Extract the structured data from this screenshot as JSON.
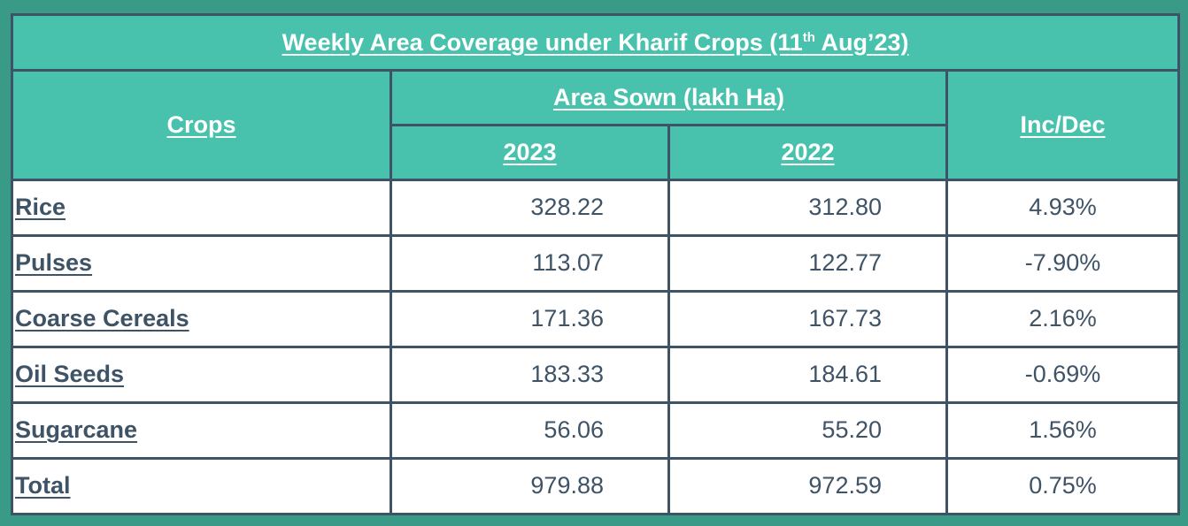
{
  "title": {
    "prefix": "Weekly Area Coverage under Kharif Crops (11",
    "sup": "th",
    "suffix": " Aug’23)"
  },
  "headers": {
    "crops": "Crops",
    "area_sown": "Area Sown (lakh Ha)",
    "year_2023": "2023",
    "year_2022": "2022",
    "inc_dec": "Inc/Dec"
  },
  "rows": [
    {
      "crop": "Rice",
      "y2023": "328.22",
      "y2022": "312.80",
      "change": "4.93%"
    },
    {
      "crop": "Pulses",
      "y2023": "113.07",
      "y2022": "122.77",
      "change": "-7.90%"
    },
    {
      "crop": "Coarse Cereals",
      "y2023": "171.36",
      "y2022": "167.73",
      "change": "2.16%"
    },
    {
      "crop": "Oil Seeds",
      "y2023": "183.33",
      "y2022": "184.61",
      "change": "-0.69%"
    },
    {
      "crop": "Sugarcane",
      "y2023": "56.06",
      "y2022": "55.20",
      "change": "1.56%"
    },
    {
      "crop": "Total",
      "y2023": "979.88",
      "y2022": "972.59",
      "change": "0.75%"
    }
  ],
  "colors": {
    "header_bg": "#48c1ad",
    "border": "#3f5366",
    "page_bg": "#3a9a88",
    "text": "#3f5366"
  }
}
